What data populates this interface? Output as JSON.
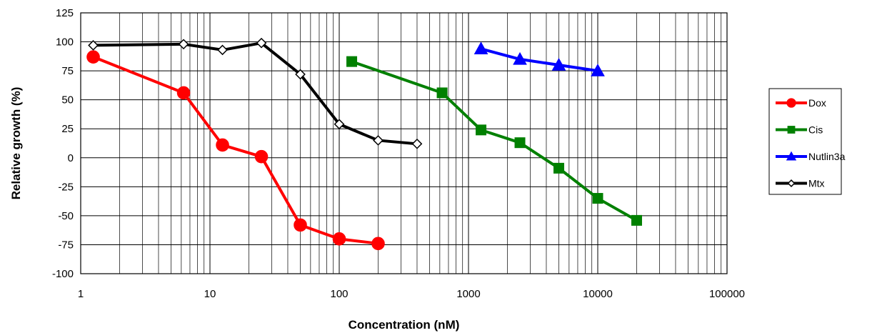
{
  "chart_data": {
    "type": "line",
    "title": "",
    "xlabel": "Concentration (nM)",
    "ylabel": "Relative growth (%)",
    "x_scale": "log",
    "xlim": [
      1,
      100000
    ],
    "ylim": [
      -100,
      125
    ],
    "x_ticks": [
      1,
      10,
      100,
      1000,
      10000,
      100000
    ],
    "x_tick_labels": [
      "1",
      "10",
      "100",
      "1000",
      "10000",
      "100000"
    ],
    "y_ticks": [
      125,
      100,
      75,
      50,
      25,
      0,
      -25,
      -50,
      -75,
      -100
    ],
    "y_tick_labels": [
      "125",
      "100",
      "75",
      "50",
      "25",
      "0",
      "-25",
      "-50",
      "-75",
      "-100"
    ],
    "grid": true,
    "legend_position": "right",
    "series": [
      {
        "name": "Dox",
        "color": "#ff0000",
        "marker": "circle",
        "x": [
          1.25,
          6.25,
          12.5,
          25,
          50,
          100,
          200
        ],
        "y": [
          87,
          56,
          11,
          1,
          -58,
          -70,
          -74
        ]
      },
      {
        "name": "Cis",
        "color": "#008000",
        "marker": "square",
        "x": [
          125,
          625,
          1250,
          2500,
          5000,
          10000,
          20000
        ],
        "y": [
          83,
          56,
          24,
          13,
          -9,
          -35,
          -54
        ]
      },
      {
        "name": "Nutlin3a",
        "color": "#0000ff",
        "marker": "triangle",
        "x": [
          1250,
          2500,
          5000,
          10000
        ],
        "y": [
          94,
          85,
          80,
          75
        ]
      },
      {
        "name": "Mtx",
        "color": "#000000",
        "marker": "diamond",
        "x": [
          1.25,
          6.25,
          12.5,
          25,
          50,
          100,
          200,
          400
        ],
        "y": [
          97,
          98,
          93,
          99,
          72,
          29,
          15,
          12
        ]
      }
    ]
  }
}
